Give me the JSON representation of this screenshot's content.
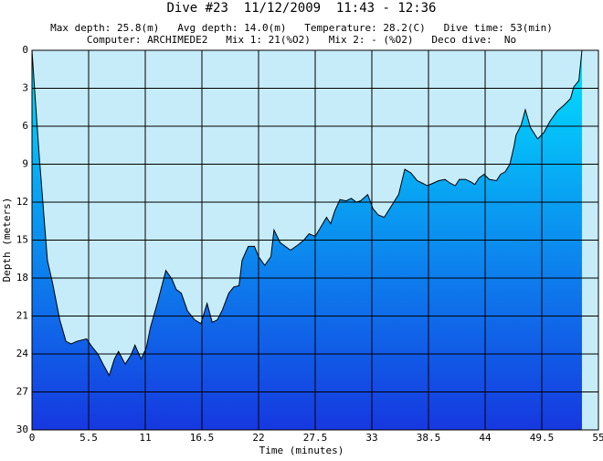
{
  "chart_data": {
    "type": "area",
    "title": "Dive #23  11/12/2009  11:43 - 12:36",
    "subtitle": [
      "Max depth: 25.8(m)   Avg depth: 14.0(m)   Temperature: 28.2(C)   Dive time: 53(min)",
      "Computer: ARCHIMEDE2   Mix 1: 21(%O2)   Mix 2: - (%O2)   Deco dive:  No"
    ],
    "xlabel": "Time (minutes)",
    "ylabel": "Depth (meters)",
    "x": [
      0,
      0.27,
      0.7,
      1.5,
      2.0,
      2.7,
      3.3,
      3.8,
      4.35,
      5.3,
      5.8,
      6.4,
      6.9,
      7.5,
      8.0,
      8.4,
      9.05,
      9.6,
      10.0,
      10.6,
      11.1,
      11.5,
      12.2,
      13.0,
      13.6,
      14.0,
      14.5,
      15.1,
      15.8,
      16.4,
      17.0,
      17.5,
      18.0,
      18.5,
      19.1,
      19.6,
      20.1,
      20.4,
      21.0,
      21.6,
      22.0,
      22.6,
      23.2,
      23.5,
      24.1,
      25.1,
      25.8,
      26.4,
      26.9,
      27.5,
      27.95,
      28.6,
      29.0,
      29.4,
      29.9,
      30.5,
      31.0,
      31.5,
      31.9,
      32.6,
      33.1,
      33.6,
      34.2,
      34.9,
      35.6,
      36.2,
      36.8,
      37.4,
      37.9,
      38.4,
      38.95,
      39.5,
      40.1,
      40.6,
      41.1,
      41.5,
      42.1,
      42.6,
      43.0,
      43.4,
      43.9,
      44.4,
      45.1,
      45.5,
      45.95,
      46.4,
      46.8,
      47.0,
      47.5,
      47.9,
      48.4,
      49.1,
      49.7,
      50.3,
      51.0,
      51.7,
      52.3,
      52.6,
      53.1,
      53.4
    ],
    "values": [
      0,
      3.25,
      8.3,
      16.6,
      18.4,
      21.3,
      23.0,
      23.2,
      23.0,
      22.8,
      23.4,
      24.0,
      24.8,
      25.7,
      24.4,
      23.8,
      24.8,
      24.1,
      23.3,
      24.4,
      23.5,
      21.9,
      19.9,
      17.4,
      18.1,
      18.9,
      19.2,
      20.6,
      21.3,
      21.6,
      20.0,
      21.5,
      21.3,
      20.5,
      19.2,
      18.7,
      18.6,
      16.6,
      15.5,
      15.5,
      16.3,
      17.0,
      16.3,
      14.2,
      15.2,
      15.8,
      15.4,
      15.0,
      14.5,
      14.7,
      14.1,
      13.2,
      13.7,
      12.7,
      11.8,
      11.9,
      11.7,
      12.0,
      11.9,
      11.4,
      12.5,
      13.0,
      13.2,
      12.3,
      11.4,
      9.4,
      9.7,
      10.3,
      10.5,
      10.7,
      10.5,
      10.3,
      10.2,
      10.5,
      10.7,
      10.2,
      10.2,
      10.4,
      10.6,
      10.1,
      9.8,
      10.2,
      10.3,
      9.8,
      9.6,
      9.0,
      7.6,
      6.7,
      5.9,
      4.7,
      6.1,
      7.0,
      6.5,
      5.6,
      4.8,
      4.3,
      3.8,
      2.9,
      2.4,
      0
    ],
    "xlim": [
      0,
      55
    ],
    "ylim": [
      0,
      30
    ],
    "inverted_y": true,
    "xticks": [
      0,
      5.5,
      11,
      16.5,
      22,
      27.5,
      33,
      38.5,
      44,
      49.5,
      55
    ],
    "yticks": [
      0,
      3,
      6,
      9,
      12,
      15,
      18,
      21,
      24,
      27,
      30
    ],
    "grid": true,
    "background": "#c6ecfa",
    "colors": [
      "#00e4ff",
      "#1638e0"
    ]
  }
}
